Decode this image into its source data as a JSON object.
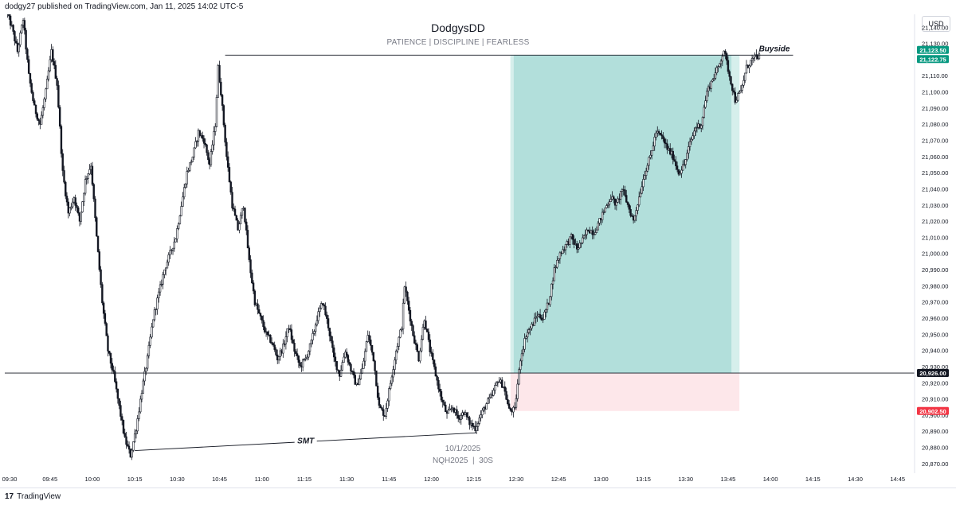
{
  "header": {
    "published_text": "dodgy27 published on TradingView.com, Jan 11, 2025 14:02 UTC-5",
    "chart_title": "DodgysDD",
    "chart_subtitle": "PATIENCE  |  DISCIPLINE  |  FEARLESS",
    "currency": "USD"
  },
  "footer": {
    "logo_glyph": "17",
    "brand": "TradingView"
  },
  "colors": {
    "up": "#2a2e39",
    "down": "#131722",
    "profit": "#b2dfdb",
    "profit_edge": "#d6efec",
    "loss": "#fde7ea",
    "price_green": "#089981",
    "price_red": "#f23645",
    "line": "#131722"
  },
  "chart_data": {
    "type": "candlestick",
    "symbol_label": "NQH2025  |  30S",
    "date_label": "10/1/2025",
    "x_axis": {
      "ticks": [
        "09:30",
        "09:45",
        "10:00",
        "10:15",
        "10:30",
        "10:45",
        "11:00",
        "11:15",
        "11:30",
        "11:45",
        "12:00",
        "12:15",
        "12:30",
        "12:45",
        "13:00",
        "13:15",
        "13:30",
        "13:45",
        "14:00",
        "14:15",
        "14:30",
        "14:45"
      ],
      "tick_minutes": [
        570,
        585,
        600,
        615,
        630,
        645,
        660,
        675,
        690,
        705,
        720,
        735,
        750,
        765,
        780,
        795,
        810,
        825,
        840,
        855,
        870,
        885
      ]
    },
    "y_axis": {
      "ylim": [
        20865,
        21148
      ],
      "ticks": [
        20870,
        20880,
        20890,
        20900,
        20910,
        20920,
        20930,
        20940,
        20950,
        20960,
        20970,
        20980,
        20990,
        21000,
        21010,
        21020,
        21030,
        21040,
        21050,
        21060,
        21070,
        21080,
        21090,
        21100,
        21110,
        21120,
        21130,
        21140
      ],
      "tick_labels": [
        "20,870.00",
        "20,880.00",
        "20,890.00",
        "20,900.00",
        "20,910.00",
        "20,920.00",
        "20,930.00",
        "20,940.00",
        "20,950.00",
        "20,960.00",
        "20,970.00",
        "20,980.00",
        "20,990.00",
        "21,000.00",
        "21,010.00",
        "21,020.00",
        "21,030.00",
        "21,040.00",
        "21,050.00",
        "21,060.00",
        "21,070.00",
        "21,080.00",
        "21,090.00",
        "21,100.00",
        "21,110.00",
        "21,120.00",
        "21,130.00",
        "21,140.00"
      ]
    },
    "price_path": [
      [
        570,
        21150
      ],
      [
        572,
        21140
      ],
      [
        574,
        21125
      ],
      [
        576,
        21145
      ],
      [
        578,
        21110
      ],
      [
        580,
        21090
      ],
      [
        582,
        21080
      ],
      [
        584,
        21100
      ],
      [
        586,
        21125
      ],
      [
        588,
        21105
      ],
      [
        590,
        21050
      ],
      [
        592,
        21025
      ],
      [
        594,
        21035
      ],
      [
        596,
        21020
      ],
      [
        598,
        21045
      ],
      [
        600,
        21055
      ],
      [
        602,
        21010
      ],
      [
        604,
        20970
      ],
      [
        606,
        20940
      ],
      [
        608,
        20925
      ],
      [
        610,
        20905
      ],
      [
        612,
        20885
      ],
      [
        614,
        20875
      ],
      [
        616,
        20892
      ],
      [
        618,
        20915
      ],
      [
        620,
        20935
      ],
      [
        622,
        20960
      ],
      [
        624,
        20975
      ],
      [
        626,
        20990
      ],
      [
        628,
        21000
      ],
      [
        630,
        21010
      ],
      [
        632,
        21030
      ],
      [
        634,
        21050
      ],
      [
        636,
        21060
      ],
      [
        638,
        21075
      ],
      [
        640,
        21070
      ],
      [
        642,
        21055
      ],
      [
        644,
        21080
      ],
      [
        645,
        21115
      ],
      [
        646,
        21100
      ],
      [
        648,
        21060
      ],
      [
        650,
        21030
      ],
      [
        652,
        21015
      ],
      [
        654,
        21030
      ],
      [
        656,
        20995
      ],
      [
        658,
        20970
      ],
      [
        660,
        20960
      ],
      [
        662,
        20950
      ],
      [
        664,
        20945
      ],
      [
        666,
        20935
      ],
      [
        668,
        20942
      ],
      [
        670,
        20955
      ],
      [
        672,
        20940
      ],
      [
        674,
        20930
      ],
      [
        676,
        20935
      ],
      [
        678,
        20945
      ],
      [
        680,
        20960
      ],
      [
        682,
        20970
      ],
      [
        684,
        20955
      ],
      [
        686,
        20935
      ],
      [
        688,
        20925
      ],
      [
        690,
        20940
      ],
      [
        692,
        20928
      ],
      [
        694,
        20918
      ],
      [
        696,
        20928
      ],
      [
        698,
        20950
      ],
      [
        700,
        20935
      ],
      [
        702,
        20905
      ],
      [
        704,
        20900
      ],
      [
        706,
        20920
      ],
      [
        708,
        20940
      ],
      [
        710,
        20955
      ],
      [
        711,
        20980
      ],
      [
        712,
        20970
      ],
      [
        714,
        20950
      ],
      [
        716,
        20935
      ],
      [
        718,
        20960
      ],
      [
        720,
        20940
      ],
      [
        722,
        20925
      ],
      [
        724,
        20910
      ],
      [
        726,
        20900
      ],
      [
        728,
        20905
      ],
      [
        730,
        20898
      ],
      [
        732,
        20902
      ],
      [
        734,
        20895
      ],
      [
        736,
        20892
      ],
      [
        738,
        20900
      ],
      [
        740,
        20907
      ],
      [
        742,
        20912
      ],
      [
        744,
        20922
      ],
      [
        746,
        20918
      ],
      [
        748,
        20903
      ],
      [
        750,
        20903
      ],
      [
        752,
        20935
      ],
      [
        754,
        20950
      ],
      [
        756,
        20955
      ],
      [
        758,
        20962
      ],
      [
        760,
        20960
      ],
      [
        762,
        20970
      ],
      [
        764,
        20990
      ],
      [
        766,
        21000
      ],
      [
        768,
        21005
      ],
      [
        770,
        21010
      ],
      [
        772,
        21003
      ],
      [
        774,
        21008
      ],
      [
        776,
        21015
      ],
      [
        778,
        21013
      ],
      [
        780,
        21020
      ],
      [
        782,
        21028
      ],
      [
        784,
        21035
      ],
      [
        786,
        21030
      ],
      [
        788,
        21040
      ],
      [
        790,
        21030
      ],
      [
        792,
        21020
      ],
      [
        794,
        21035
      ],
      [
        796,
        21050
      ],
      [
        798,
        21060
      ],
      [
        800,
        21075
      ],
      [
        802,
        21072
      ],
      [
        804,
        21065
      ],
      [
        806,
        21060
      ],
      [
        808,
        21050
      ],
      [
        810,
        21055
      ],
      [
        812,
        21068
      ],
      [
        814,
        21078
      ],
      [
        816,
        21080
      ],
      [
        818,
        21100
      ],
      [
        820,
        21108
      ],
      [
        822,
        21115
      ],
      [
        824,
        21126
      ],
      [
        826,
        21110
      ],
      [
        828,
        21095
      ],
      [
        830,
        21100
      ],
      [
        832,
        21115
      ],
      [
        834,
        21120
      ],
      [
        836,
        21122
      ]
    ],
    "horizontal_lines": [
      {
        "price": 20926.0,
        "label": "20,926.00"
      }
    ],
    "buyside": {
      "price": 21122.75,
      "from_minute": 647,
      "to_minute": 848,
      "label": "Buyside"
    },
    "smt": {
      "from": [
        615,
        20878
      ],
      "to": [
        736,
        20889
      ],
      "label": "SMT"
    },
    "position": {
      "entry": 20926.0,
      "target": 21122.75,
      "stop": 20902.5,
      "from_minute": 748,
      "to_minute": 829
    },
    "price_labels": [
      {
        "value": "21,123.50",
        "price": 21123.5,
        "color": "#089981"
      },
      {
        "value": "21,122.75",
        "price": 21122.75,
        "color": "#089981"
      },
      {
        "value": "20,926.00",
        "price": 20926.0,
        "color": "#131722"
      },
      {
        "value": "20,902.50",
        "price": 20902.5,
        "color": "#f23645"
      }
    ]
  }
}
